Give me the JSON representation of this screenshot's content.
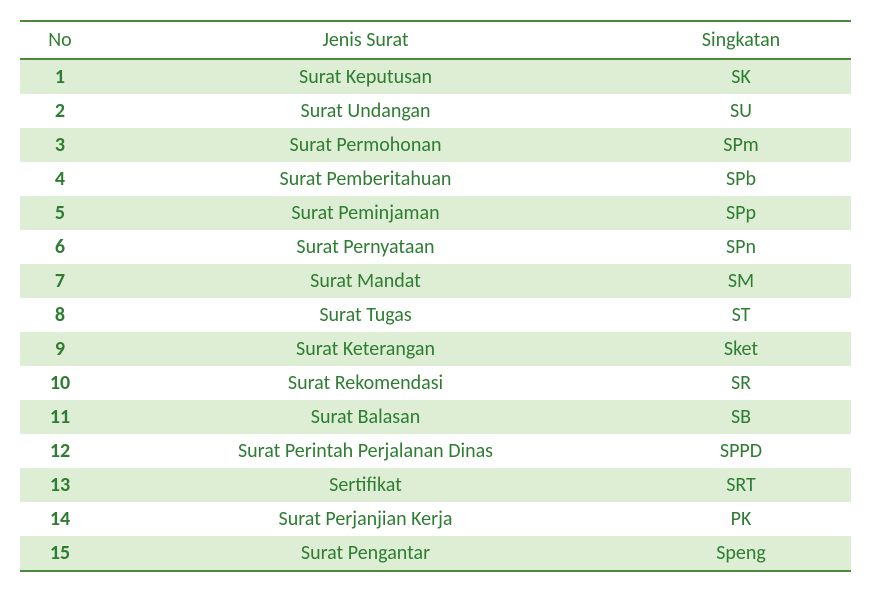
{
  "colors": {
    "text": "#2e7d32",
    "headerBorder": "#4a8a3a",
    "stripe": "#ddeed4",
    "background": "#ffffff"
  },
  "font": {
    "headerSize": 20,
    "cellSize": 20
  },
  "table": {
    "columns": [
      "No",
      "Jenis Surat",
      "Singkatan"
    ],
    "rows": [
      [
        "1",
        "Surat Keputusan",
        "SK"
      ],
      [
        "2",
        "Surat Undangan",
        "SU"
      ],
      [
        "3",
        "Surat Permohonan",
        "SPm"
      ],
      [
        "4",
        "Surat Pemberitahuan",
        "SPb"
      ],
      [
        "5",
        "Surat Peminjaman",
        "SPp"
      ],
      [
        "6",
        "Surat Pernyataan",
        "SPn"
      ],
      [
        "7",
        "Surat Mandat",
        "SM"
      ],
      [
        "8",
        "Surat Tugas",
        "ST"
      ],
      [
        "9",
        "Surat Keterangan",
        "Sket"
      ],
      [
        "10",
        "Surat Rekomendasi",
        "SR"
      ],
      [
        "11",
        "Surat Balasan",
        "SB"
      ],
      [
        "12",
        "Surat Perintah Perjalanan Dinas",
        "SPPD"
      ],
      [
        "13",
        "Sertifikat",
        "SRT"
      ],
      [
        "14",
        "Surat Perjanjian Kerja",
        "PK"
      ],
      [
        "15",
        "Surat Pengantar",
        "Speng"
      ]
    ]
  }
}
